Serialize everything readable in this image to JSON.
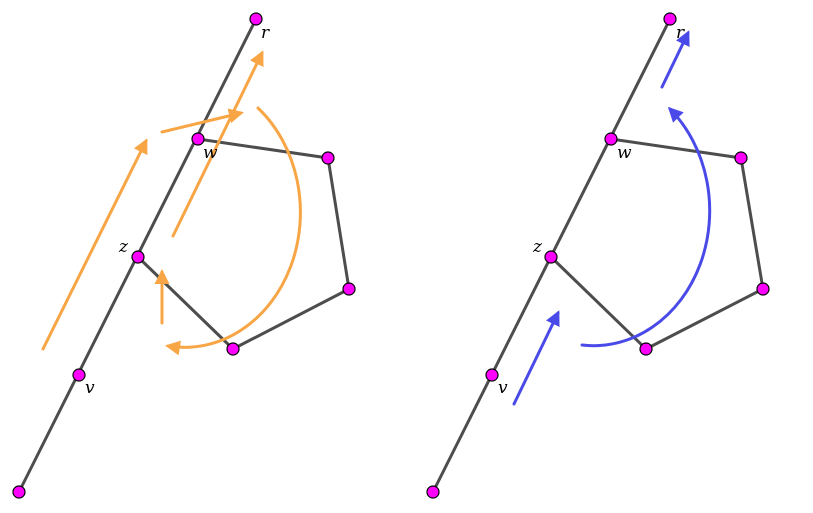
{
  "left_diagram": {
    "labels": {
      "r": "r",
      "w": "w",
      "z": "z",
      "v": "v"
    },
    "arrow_color": "#f7a545"
  },
  "right_diagram": {
    "labels": {
      "r": "r",
      "w": "w",
      "z": "z",
      "v": "v"
    },
    "arrow_color": "#4a4ae8"
  },
  "edge_color": "#4d4d4d",
  "vertex_color": "#ff00ff"
}
